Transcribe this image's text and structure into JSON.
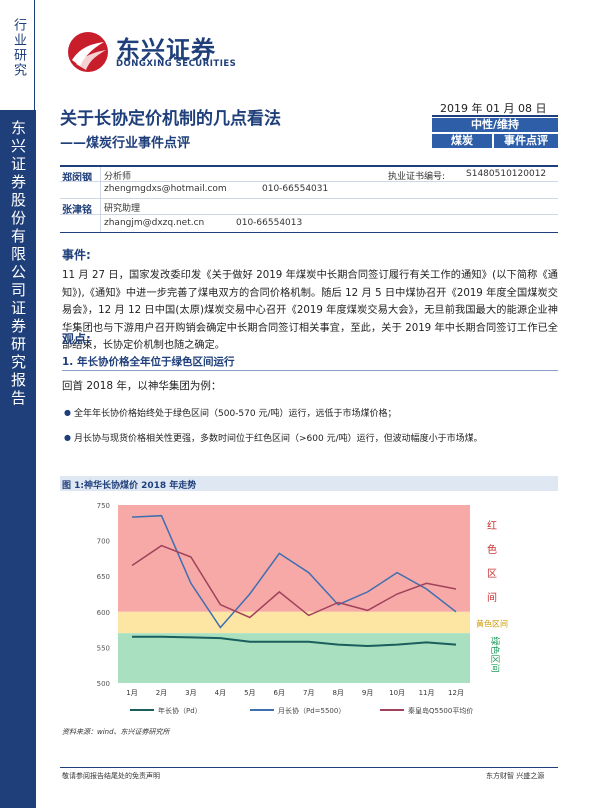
{
  "sidebar": {
    "category": "行业研究",
    "report_type": "东兴证券股份有限公司证券研究报告"
  },
  "logo": {
    "name_cn": "东兴证券",
    "name_en": "DONGXING SECURITIES"
  },
  "header": {
    "title": "关于长协定价机制的几点看法",
    "subtitle": "——煤炭行业事件点评",
    "date": "2019 年 01 月 08 日",
    "rating": "中性/维持",
    "industry": "煤炭",
    "report_type": "事件点评"
  },
  "analysts": [
    {
      "name": "郑闵钢",
      "role": "分析师",
      "email": "zhengmgdxs@hotmail.com",
      "phone": "010-66554031",
      "cert_label": "执业证书编号:",
      "cert": "S1480510120012"
    },
    {
      "name": "张津铭",
      "role": "研究助理",
      "email": "zhangjm@dxzq.net.cn",
      "phone": "010-66554013"
    }
  ],
  "event": {
    "heading": "事件:",
    "paragraph": "11 月 27 日，国家发改委印发《关于做好 2019 年煤炭中长期合同签订履行有关工作的通知》(以下简称《通知》),《通知》中进一步完善了煤电双方的合同价格机制。随后 12 月 5 日中煤协召开《2019 年度全国煤炭交易会》，12 月 12 日中国(太原)煤炭交易中心召开《2019 年度煤炭交易大会》，无旦前我国最大的能源企业神华集团也与下游用户召开购销会确定中长期合同签订相关事宜，至此，关于 2019 年中长期合同签订工作已全部结束，长协定价机制也随之确定。"
  },
  "viewpoint": {
    "heading": "观点:",
    "sub1": "1. 年长协价格全年位于绿色区间运行",
    "review": "回首 2018 年，以神华集团为例：",
    "bullets": [
      "全年年长协价格始终处于绿色区间（500-570 元/吨）运行，远低于市场煤价格；",
      "月长协与现货价格相关性更强，多数时间位于红色区间（>600 元/吨）运行，但波动幅度小于市场煤。"
    ]
  },
  "figure": {
    "title": "图 1:神华长协煤价 2018 年走势",
    "source": "资料来源：wind、东兴证券研究所"
  },
  "chart_data": {
    "type": "line",
    "categories": [
      "1月",
      "2月",
      "3月",
      "4月",
      "5月",
      "6月",
      "7月",
      "8月",
      "9月",
      "10月",
      "11月",
      "12月"
    ],
    "ylim": [
      500,
      750
    ],
    "yticks": [
      500,
      550,
      600,
      650,
      700,
      750
    ],
    "zones": [
      {
        "label": "红色区间",
        "from": 600,
        "to": 750,
        "color": "#f7a9a8"
      },
      {
        "label": "黄色区间",
        "from": 570,
        "to": 600,
        "color": "#fde6a4"
      },
      {
        "label": "绿色区间",
        "from": 500,
        "to": 570,
        "color": "#a8e0c0"
      }
    ],
    "series": [
      {
        "name": "年长协（Pd）",
        "color": "#1a5f5e",
        "values": [
          565,
          565,
          564,
          563,
          558,
          558,
          558,
          554,
          552,
          554,
          557,
          554
        ]
      },
      {
        "name": "月长协（Pd=5500）",
        "color": "#3e6fb0",
        "values": [
          733,
          735,
          640,
          578,
          625,
          682,
          655,
          610,
          628,
          655,
          632,
          600
        ]
      },
      {
        "name": "秦皇岛Q5500平均价",
        "color": "#a0425a",
        "values": [
          665,
          693,
          677,
          610,
          592,
          628,
          595,
          613,
          602,
          625,
          640,
          632
        ]
      }
    ],
    "legend_position": "bottom"
  },
  "footer": {
    "disclaimer": "敬请参阅报告结尾处的免责声明",
    "slogan": "东方财智 兴盛之源"
  }
}
